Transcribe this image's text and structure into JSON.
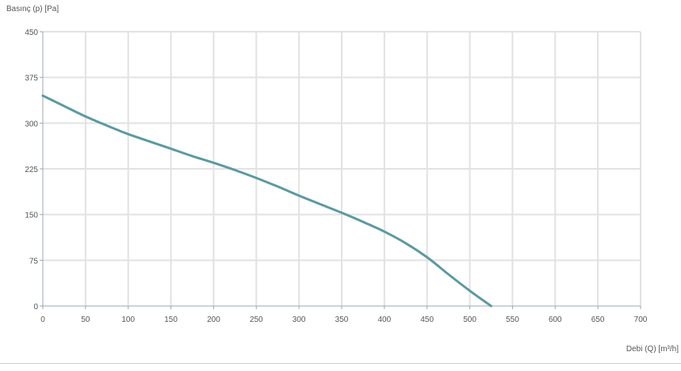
{
  "chart_data": {
    "type": "line",
    "ylabel": "Basınç (p) [Pa]",
    "xlabel": "Debi (Q) [m³/h]",
    "xlim": [
      0,
      700
    ],
    "ylim": [
      0,
      450
    ],
    "x_ticks": [
      "0",
      "50",
      "100",
      "150",
      "200",
      "250",
      "300",
      "350",
      "400",
      "450",
      "500",
      "550",
      "600",
      "650",
      "700"
    ],
    "y_ticks": [
      "0",
      "75",
      "150",
      "225",
      "300",
      "375",
      "450"
    ],
    "grid": true,
    "series": [
      {
        "color": "#5b9aa0",
        "points": [
          [
            0,
            345
          ],
          [
            25,
            328
          ],
          [
            50,
            311
          ],
          [
            75,
            296
          ],
          [
            100,
            282
          ],
          [
            125,
            270
          ],
          [
            150,
            258
          ],
          [
            175,
            246
          ],
          [
            200,
            235
          ],
          [
            225,
            223
          ],
          [
            250,
            210
          ],
          [
            275,
            196
          ],
          [
            300,
            181
          ],
          [
            325,
            167
          ],
          [
            350,
            153
          ],
          [
            375,
            138
          ],
          [
            400,
            122
          ],
          [
            425,
            103
          ],
          [
            450,
            80
          ],
          [
            475,
            52
          ],
          [
            500,
            25
          ],
          [
            525,
            0
          ]
        ]
      }
    ]
  }
}
